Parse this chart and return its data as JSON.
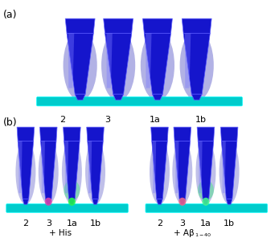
{
  "panel_a_label": "(a)",
  "panel_b_label": "(b)",
  "panel_a_xlabels": [
    "2",
    "3",
    "1a",
    "1b"
  ],
  "panel_b_left_xlabels": [
    "2",
    "3",
    "1a",
    "1b"
  ],
  "panel_b_right_xlabels": [
    "2",
    "3",
    "1a",
    "1b"
  ],
  "panel_b_left_caption": "+ His",
  "panel_b_right_caption": "+ Aβ₁₋₄₀",
  "background_color": "#ffffff",
  "label_fontsize": 8,
  "caption_fontsize": 7.5,
  "panel_label_fontsize": 9
}
